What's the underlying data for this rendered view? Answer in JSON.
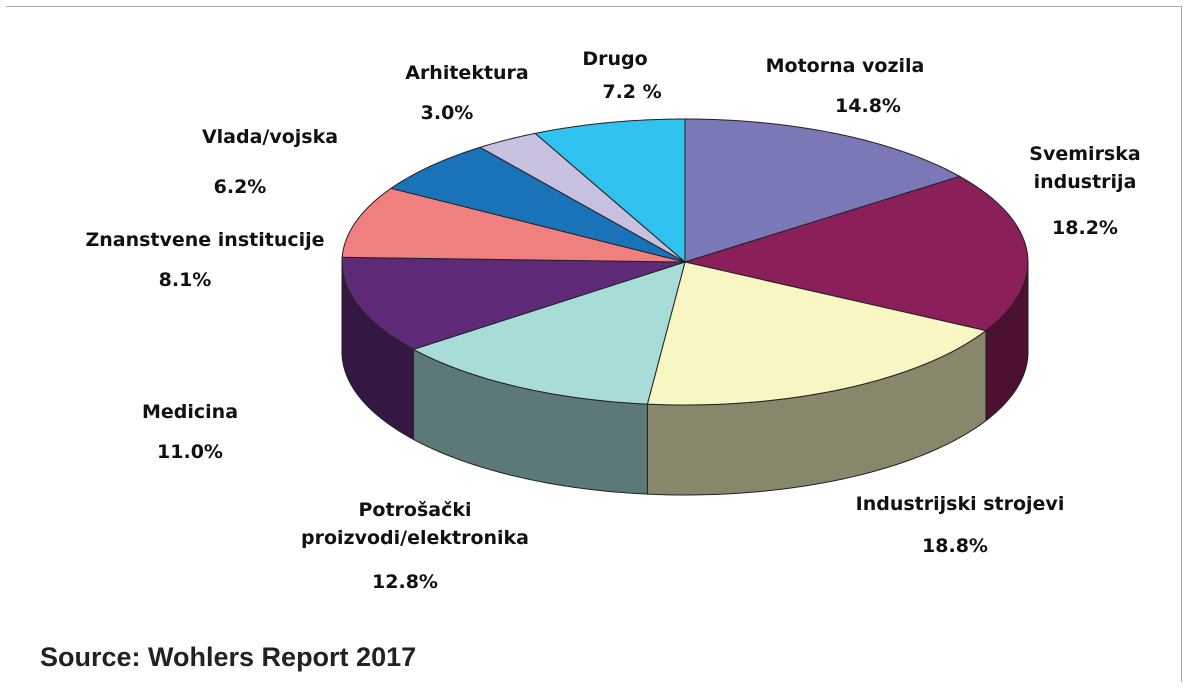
{
  "chart_data": {
    "type": "pie",
    "categories": [
      "Motorna vozila",
      "Svemirska industrija",
      "Industrijski strojevi",
      "Potrošački proizvodi/elektronika",
      "Medicina",
      "Znanstvene institucije",
      "Vlada/vojska",
      "Arhitektura",
      "Drugo"
    ],
    "values": [
      14.8,
      18.2,
      18.8,
      12.8,
      11.0,
      8.1,
      6.2,
      3.0,
      7.2
    ],
    "value_labels": [
      "14.8%",
      "18.2%",
      "18.8%",
      "12.8%",
      "11.0%",
      "8.1%",
      "6.2%",
      "3.0%",
      "7.2 %"
    ],
    "colors": [
      "#7b78b8",
      "#8b1f5a",
      "#f8f6c2",
      "#a8dcd8",
      "#5e2a78",
      "#f08080",
      "#1a72b8",
      "#c8c0e0",
      "#30c2ee"
    ],
    "source": "Source: Wohlers Report 2017"
  }
}
